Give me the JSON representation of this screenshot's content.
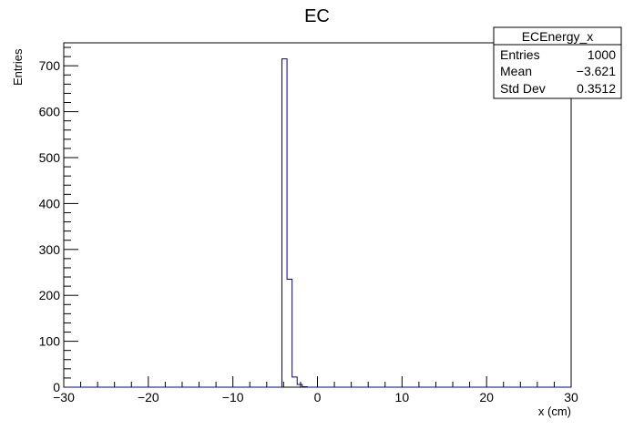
{
  "chart_data": {
    "type": "bar",
    "title": "EC",
    "xlabel": "x (cm)",
    "ylabel": "Entries",
    "xlim": [
      -30,
      30
    ],
    "ylim": [
      0,
      750
    ],
    "x_ticks": [
      -30,
      -20,
      -10,
      0,
      10,
      20,
      30
    ],
    "y_ticks": [
      0,
      100,
      200,
      300,
      400,
      500,
      600,
      700
    ],
    "x_tick_labels": [
      "−30",
      "−20",
      "−10",
      "0",
      "10",
      "20",
      "30"
    ],
    "y_tick_labels": [
      "0",
      "100",
      "200",
      "300",
      "400",
      "500",
      "600",
      "700"
    ],
    "grid": false,
    "legend": "none",
    "series_color": "#000099",
    "bins": [
      {
        "x_low": -4.2,
        "x_high": -3.6,
        "value": 715
      },
      {
        "x_low": -3.6,
        "x_high": -3.0,
        "value": 235
      },
      {
        "x_low": -3.0,
        "x_high": -2.4,
        "value": 22
      },
      {
        "x_low": -2.4,
        "x_high": -1.8,
        "value": 6
      },
      {
        "x_low": -1.8,
        "x_high": -1.2,
        "value": 1
      }
    ],
    "stats_box": {
      "name": "ECEnergy_x",
      "rows": [
        {
          "label": "Entries",
          "value": "1000"
        },
        {
          "label": "Mean",
          "value": "−3.621"
        },
        {
          "label": "Std Dev",
          "value": "0.3512"
        }
      ]
    }
  }
}
